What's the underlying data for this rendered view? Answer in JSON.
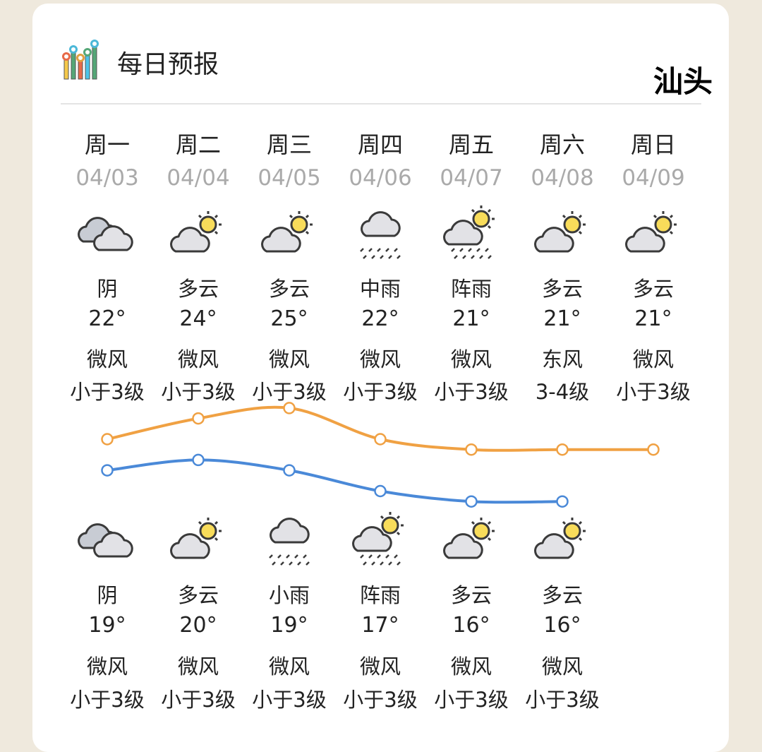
{
  "header": {
    "title": "每日预报",
    "city": "汕头",
    "logo_icon": "bar-chart-icon"
  },
  "colors": {
    "high_line": "#f0a143",
    "low_line": "#4a89d8",
    "page_bg": "#efe9dd"
  },
  "days": [
    {
      "day": "周一",
      "date": "04/03",
      "day_weather": "阴",
      "day_icon": "overcast",
      "high": "22°",
      "high_value": 22,
      "day_wind": "微风",
      "day_level": "小于3级",
      "night_icon": "overcast",
      "night_weather": "阴",
      "low": "19°",
      "low_value": 19,
      "night_wind": "微风",
      "night_level": "小于3级"
    },
    {
      "day": "周二",
      "date": "04/04",
      "day_weather": "多云",
      "day_icon": "partly-cloudy",
      "high": "24°",
      "high_value": 24,
      "day_wind": "微风",
      "day_level": "小于3级",
      "night_icon": "partly-cloudy",
      "night_weather": "多云",
      "low": "20°",
      "low_value": 20,
      "night_wind": "微风",
      "night_level": "小于3级"
    },
    {
      "day": "周三",
      "date": "04/05",
      "day_weather": "多云",
      "day_icon": "partly-cloudy",
      "high": "25°",
      "high_value": 25,
      "day_wind": "微风",
      "day_level": "小于3级",
      "night_icon": "light-rain",
      "night_weather": "小雨",
      "low": "19°",
      "low_value": 19,
      "night_wind": "微风",
      "night_level": "小于3级"
    },
    {
      "day": "周四",
      "date": "04/06",
      "day_weather": "中雨",
      "day_icon": "moderate-rain",
      "high": "22°",
      "high_value": 22,
      "day_wind": "微风",
      "day_level": "小于3级",
      "night_icon": "shower",
      "night_weather": "阵雨",
      "low": "17°",
      "low_value": 17,
      "night_wind": "微风",
      "night_level": "小于3级"
    },
    {
      "day": "周五",
      "date": "04/07",
      "day_weather": "阵雨",
      "day_icon": "shower",
      "high": "21°",
      "high_value": 21,
      "day_wind": "微风",
      "day_level": "小于3级",
      "night_icon": "partly-cloudy",
      "night_weather": "多云",
      "low": "16°",
      "low_value": 16,
      "night_wind": "微风",
      "night_level": "小于3级"
    },
    {
      "day": "周六",
      "date": "04/08",
      "day_weather": "多云",
      "day_icon": "partly-cloudy",
      "high": "21°",
      "high_value": 21,
      "day_wind": "东风",
      "day_level": "3-4级",
      "night_icon": "partly-cloudy",
      "night_weather": "多云",
      "low": "16°",
      "low_value": 16,
      "night_wind": "微风",
      "night_level": "小于3级"
    },
    {
      "day": "周日",
      "date": "04/09",
      "day_weather": "多云",
      "day_icon": "partly-cloudy",
      "high": "21°",
      "high_value": 21,
      "day_wind": "微风",
      "day_level": "小于3级"
    }
  ]
}
